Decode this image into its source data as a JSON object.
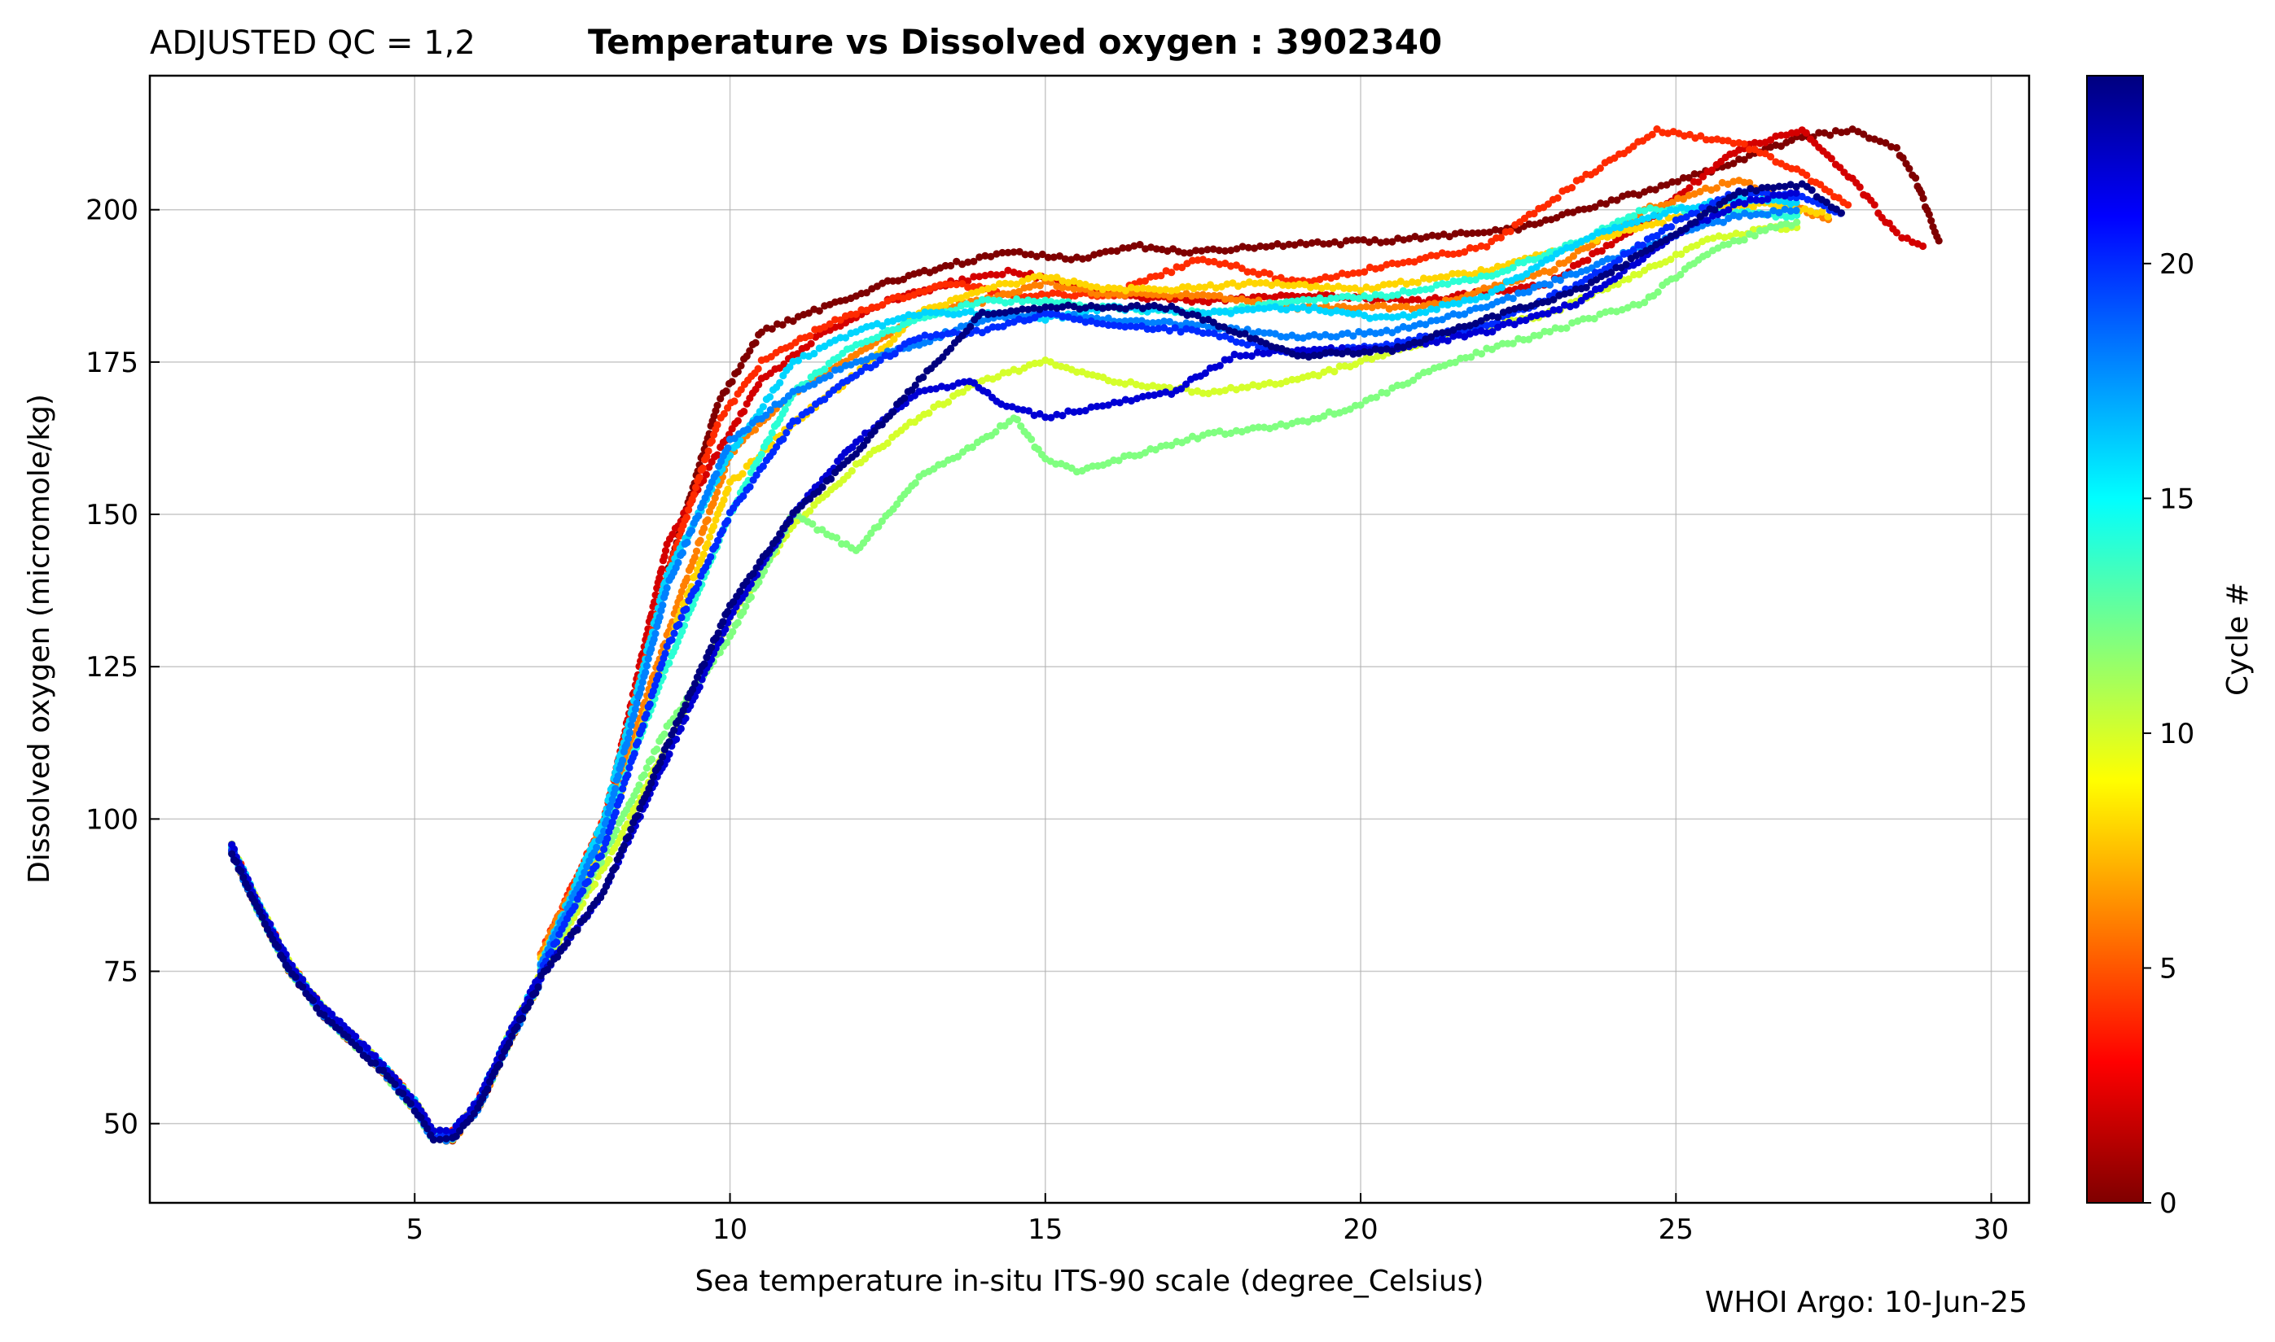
{
  "title": {
    "qc_label": "ADJUSTED QC = 1,2",
    "main": "Temperature vs Dissolved oxygen : 3902340"
  },
  "credit": "WHOI Argo: 10-Jun-25",
  "colormap_colors": [
    "#7f0000",
    "#ff0000",
    "#ff8000",
    "#ffff00",
    "#80ff80",
    "#00ffff",
    "#0080ff",
    "#0000ff",
    "#00007f"
  ],
  "chart_data": {
    "type": "scatter",
    "title": "Temperature vs Dissolved oxygen : 3902340",
    "subtitle": "ADJUSTED QC = 1,2",
    "xlabel": "Sea temperature in-situ ITS-90 scale  (degree_Celsius)",
    "ylabel": "Dissolved oxygen  (micromole/kg)",
    "xlim": [
      0.8,
      30.6
    ],
    "ylim": [
      37,
      222
    ],
    "xticks": [
      5,
      10,
      15,
      20,
      25,
      30
    ],
    "yticks": [
      50,
      75,
      100,
      125,
      150,
      175,
      200
    ],
    "grid": true,
    "colorbar": {
      "label": "Cycle #",
      "range": [
        0,
        24
      ],
      "ticks": [
        0,
        5,
        10,
        15,
        20
      ],
      "colormap": "jet_reversed"
    },
    "deep_branch": [
      [
        2.1,
        95
      ],
      [
        2.5,
        86
      ],
      [
        3.0,
        76
      ],
      [
        3.5,
        69
      ],
      [
        4.0,
        64
      ],
      [
        4.5,
        59
      ],
      [
        5.0,
        53
      ],
      [
        5.3,
        48
      ],
      [
        5.6,
        48
      ],
      [
        6.0,
        53
      ],
      [
        6.5,
        64
      ],
      [
        7.0,
        74
      ]
    ],
    "series": [
      {
        "cycle": 0,
        "points": [
          [
            7.0,
            75
          ],
          [
            8.0,
            98
          ],
          [
            9.0,
            140
          ],
          [
            9.8,
            168
          ],
          [
            10.5,
            180
          ],
          [
            11.5,
            184
          ],
          [
            12.5,
            188
          ],
          [
            13.5,
            191
          ],
          [
            14.5,
            193
          ],
          [
            15.5,
            192
          ],
          [
            16.5,
            194
          ],
          [
            17.2,
            193
          ],
          [
            18.5,
            194
          ],
          [
            20.5,
            195
          ],
          [
            22.5,
            197
          ],
          [
            24.5,
            203
          ],
          [
            26.0,
            208
          ],
          [
            27.0,
            212
          ],
          [
            27.8,
            213
          ],
          [
            28.5,
            210
          ],
          [
            28.8,
            205
          ],
          [
            29.2,
            194
          ]
        ]
      },
      {
        "cycle": 2,
        "points": [
          [
            7.0,
            76
          ],
          [
            8.0,
            99
          ],
          [
            9.0,
            145
          ],
          [
            9.8,
            160
          ],
          [
            10.5,
            172
          ],
          [
            11.5,
            180
          ],
          [
            12.5,
            185
          ],
          [
            13.5,
            188
          ],
          [
            14.5,
            190
          ],
          [
            16.0,
            186
          ],
          [
            17.5,
            185
          ],
          [
            19.0,
            186
          ],
          [
            21.0,
            185
          ],
          [
            23.0,
            188
          ],
          [
            24.5,
            198
          ],
          [
            26.0,
            210
          ],
          [
            27.0,
            213
          ],
          [
            27.8,
            205
          ],
          [
            28.5,
            196
          ],
          [
            29.0,
            194
          ]
        ]
      },
      {
        "cycle": 4,
        "points": [
          [
            7.0,
            78
          ],
          [
            8.0,
            100
          ],
          [
            9.0,
            140
          ],
          [
            9.8,
            165
          ],
          [
            10.5,
            175
          ],
          [
            11.5,
            181
          ],
          [
            12.5,
            185
          ],
          [
            13.5,
            188
          ],
          [
            14.5,
            186
          ],
          [
            16.0,
            186
          ],
          [
            17.5,
            192
          ],
          [
            19.0,
            188
          ],
          [
            20.5,
            191
          ],
          [
            22.0,
            194
          ],
          [
            23.5,
            205
          ],
          [
            24.7,
            213
          ],
          [
            26.0,
            211
          ],
          [
            27.0,
            206
          ],
          [
            27.8,
            200
          ]
        ]
      },
      {
        "cycle": 6,
        "points": [
          [
            7.0,
            78
          ],
          [
            8.0,
            99
          ],
          [
            9.0,
            130
          ],
          [
            10.0,
            160
          ],
          [
            11.0,
            170
          ],
          [
            12.0,
            176
          ],
          [
            13.0,
            183
          ],
          [
            14.0,
            185
          ],
          [
            15.0,
            188
          ],
          [
            16.0,
            186
          ],
          [
            17.5,
            186
          ],
          [
            19.0,
            184
          ],
          [
            21.0,
            184
          ],
          [
            23.0,
            190
          ],
          [
            24.5,
            200
          ],
          [
            26.0,
            205
          ],
          [
            27.0,
            200
          ],
          [
            27.5,
            198
          ]
        ]
      },
      {
        "cycle": 8,
        "points": [
          [
            7.0,
            77
          ],
          [
            8.0,
            96
          ],
          [
            9.0,
            128
          ],
          [
            10.0,
            155
          ],
          [
            11.0,
            165
          ],
          [
            12.0,
            173
          ],
          [
            13.0,
            183
          ],
          [
            14.0,
            187
          ],
          [
            15.0,
            189
          ],
          [
            16.0,
            187
          ],
          [
            17.0,
            187
          ],
          [
            18.5,
            188
          ],
          [
            20.0,
            187
          ],
          [
            22.0,
            190
          ],
          [
            24.0,
            196
          ],
          [
            25.5,
            200
          ],
          [
            26.5,
            201
          ],
          [
            27.5,
            199
          ]
        ]
      },
      {
        "cycle": 10,
        "points": [
          [
            7.0,
            75
          ],
          [
            8.0,
            92
          ],
          [
            9.0,
            112
          ],
          [
            10.0,
            133
          ],
          [
            11.0,
            148
          ],
          [
            12.0,
            158
          ],
          [
            13.0,
            166
          ],
          [
            14.0,
            172
          ],
          [
            15.0,
            175
          ],
          [
            16.0,
            172
          ],
          [
            17.5,
            170
          ],
          [
            19.0,
            172
          ],
          [
            20.0,
            175
          ],
          [
            21.5,
            180
          ],
          [
            23.0,
            183
          ],
          [
            24.5,
            190
          ],
          [
            25.5,
            195
          ],
          [
            26.5,
            197
          ],
          [
            27.0,
            197
          ]
        ]
      },
      {
        "cycle": 12,
        "points": [
          [
            7.0,
            75
          ],
          [
            8.0,
            94
          ],
          [
            9.0,
            115
          ],
          [
            10.0,
            130
          ],
          [
            11.0,
            150
          ],
          [
            12.0,
            144
          ],
          [
            13.0,
            156
          ],
          [
            14.0,
            162
          ],
          [
            14.5,
            166
          ],
          [
            15.0,
            159
          ],
          [
            15.5,
            157
          ],
          [
            16.5,
            160
          ],
          [
            17.5,
            163
          ],
          [
            19.0,
            165
          ],
          [
            20.0,
            168
          ],
          [
            21.0,
            173
          ],
          [
            22.0,
            177
          ],
          [
            23.0,
            180
          ],
          [
            24.5,
            185
          ],
          [
            25.5,
            193
          ],
          [
            26.5,
            197
          ],
          [
            27.0,
            198
          ]
        ]
      },
      {
        "cycle": 14,
        "points": [
          [
            7.0,
            76
          ],
          [
            8.0,
            98
          ],
          [
            9.0,
            125
          ],
          [
            10.0,
            150
          ],
          [
            11.0,
            170
          ],
          [
            12.0,
            178
          ],
          [
            13.0,
            182
          ],
          [
            14.0,
            185
          ],
          [
            15.0,
            185
          ],
          [
            16.0,
            184
          ],
          [
            17.5,
            183
          ],
          [
            19.0,
            185
          ],
          [
            20.5,
            186
          ],
          [
            22.0,
            189
          ],
          [
            23.5,
            195
          ],
          [
            24.5,
            200
          ],
          [
            25.5,
            200
          ],
          [
            26.5,
            199
          ],
          [
            27.0,
            199
          ]
        ]
      },
      {
        "cycle": 16,
        "points": [
          [
            7.0,
            76
          ],
          [
            8.0,
            100
          ],
          [
            9.0,
            140
          ],
          [
            10.0,
            160
          ],
          [
            11.0,
            175
          ],
          [
            12.0,
            180
          ],
          [
            13.0,
            183
          ],
          [
            14.0,
            183
          ],
          [
            15.0,
            182
          ],
          [
            16.0,
            184
          ],
          [
            17.5,
            183
          ],
          [
            19.0,
            184
          ],
          [
            20.5,
            182
          ],
          [
            22.0,
            186
          ],
          [
            23.5,
            195
          ],
          [
            25.0,
            200
          ],
          [
            26.0,
            202
          ],
          [
            27.0,
            201
          ]
        ]
      },
      {
        "cycle": 18,
        "points": [
          [
            7.0,
            76
          ],
          [
            8.0,
            98
          ],
          [
            9.0,
            138
          ],
          [
            10.0,
            162
          ],
          [
            11.0,
            170
          ],
          [
            12.0,
            175
          ],
          [
            13.0,
            178
          ],
          [
            14.0,
            182
          ],
          [
            15.0,
            183
          ],
          [
            16.0,
            182
          ],
          [
            17.5,
            181
          ],
          [
            19.0,
            179
          ],
          [
            20.5,
            180
          ],
          [
            22.0,
            184
          ],
          [
            23.5,
            190
          ],
          [
            25.0,
            196
          ],
          [
            26.0,
            199
          ],
          [
            27.0,
            200
          ]
        ]
      },
      {
        "cycle": 20,
        "points": [
          [
            7.0,
            75
          ],
          [
            8.0,
            95
          ],
          [
            9.0,
            128
          ],
          [
            10.0,
            150
          ],
          [
            11.0,
            165
          ],
          [
            12.0,
            173
          ],
          [
            13.0,
            179
          ],
          [
            14.0,
            180
          ],
          [
            15.0,
            183
          ],
          [
            16.0,
            181
          ],
          [
            17.5,
            180
          ],
          [
            19.0,
            176
          ],
          [
            20.5,
            178
          ],
          [
            22.0,
            181
          ],
          [
            23.5,
            188
          ],
          [
            25.0,
            198
          ],
          [
            26.0,
            203
          ],
          [
            27.0,
            202
          ],
          [
            27.7,
            199
          ]
        ]
      },
      {
        "cycle": 22,
        "points": [
          [
            7.0,
            74
          ],
          [
            8.0,
            88
          ],
          [
            9.0,
            110
          ],
          [
            10.0,
            133
          ],
          [
            11.0,
            150
          ],
          [
            12.0,
            162
          ],
          [
            13.0,
            170
          ],
          [
            13.8,
            172
          ],
          [
            14.3,
            168
          ],
          [
            15.0,
            166
          ],
          [
            16.0,
            168
          ],
          [
            17.0,
            170
          ],
          [
            18.0,
            176
          ],
          [
            19.0,
            177
          ],
          [
            20.5,
            177
          ],
          [
            22.0,
            180
          ],
          [
            23.5,
            185
          ],
          [
            25.0,
            196
          ],
          [
            26.0,
            201
          ],
          [
            27.0,
            203
          ]
        ]
      },
      {
        "cycle": 24,
        "points": [
          [
            7.0,
            74
          ],
          [
            8.0,
            88
          ],
          [
            9.0,
            112
          ],
          [
            10.0,
            135
          ],
          [
            11.0,
            150
          ],
          [
            12.0,
            160
          ],
          [
            13.0,
            172
          ],
          [
            14.0,
            183
          ],
          [
            15.0,
            184
          ],
          [
            16.0,
            184
          ],
          [
            17.0,
            184
          ],
          [
            18.0,
            180
          ],
          [
            19.0,
            176
          ],
          [
            20.5,
            177
          ],
          [
            22.0,
            182
          ],
          [
            23.5,
            187
          ],
          [
            25.0,
            196
          ],
          [
            26.0,
            203
          ],
          [
            27.0,
            204
          ],
          [
            27.7,
            199
          ]
        ]
      }
    ]
  }
}
